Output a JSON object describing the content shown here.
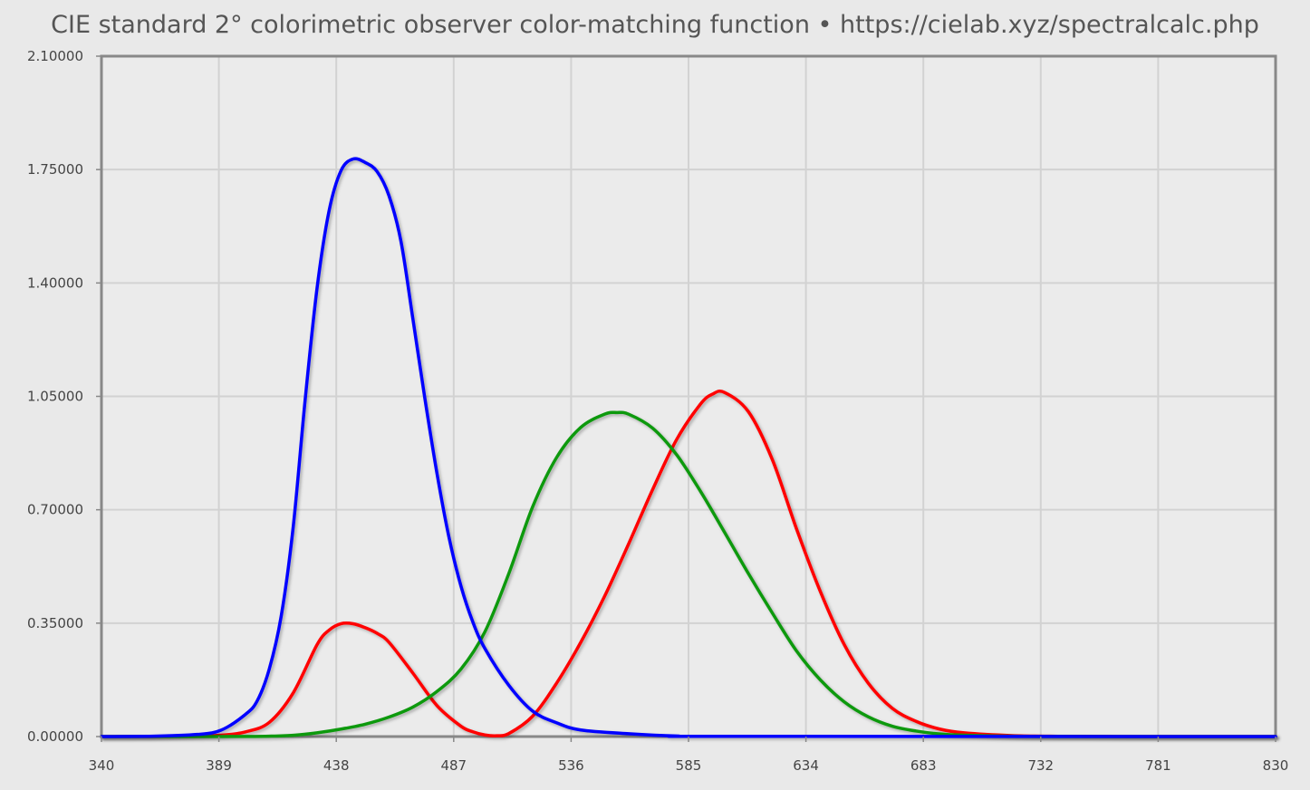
{
  "chart_data": {
    "type": "line",
    "title": "CIE standard 2° colorimetric observer color-matching function • https://cielab.xyz/spectralcalc.php",
    "xlabel": "",
    "ylabel": "",
    "xlim": [
      340,
      830
    ],
    "ylim": [
      0,
      2.1
    ],
    "xticks": [
      340,
      389,
      438,
      487,
      536,
      585,
      634,
      683,
      732,
      781,
      830
    ],
    "yticks": [
      0.0,
      0.35,
      0.7,
      1.05,
      1.4,
      1.75,
      2.1
    ],
    "ytick_labels": [
      "0.00000",
      "0.35000",
      "0.70000",
      "1.05000",
      "1.40000",
      "1.75000",
      "2.10000"
    ],
    "xtick_labels": [
      "340",
      "389",
      "438",
      "487",
      "536",
      "585",
      "634",
      "683",
      "732",
      "781",
      "830"
    ],
    "grid": true,
    "legend": "none",
    "series": [
      {
        "color": "#ff0000",
        "x": [
          340,
          360,
          380,
          390,
          400,
          410,
          420,
          430,
          435,
          440,
          445,
          450,
          455,
          460,
          470,
          480,
          490,
          495,
          500,
          505,
          510,
          520,
          530,
          540,
          550,
          560,
          570,
          580,
          590,
          595,
          600,
          610,
          620,
          630,
          640,
          650,
          660,
          670,
          680,
          690,
          700,
          720,
          740,
          760,
          780,
          830
        ],
        "y": [
          0,
          0.0001,
          0.0014,
          0.0042,
          0.0143,
          0.0435,
          0.1344,
          0.2839,
          0.3285,
          0.3483,
          0.3481,
          0.3362,
          0.3187,
          0.2908,
          0.1954,
          0.0956,
          0.032,
          0.0147,
          0.0049,
          0.0024,
          0.0093,
          0.0633,
          0.1655,
          0.2904,
          0.4334,
          0.5945,
          0.7621,
          0.9163,
          1.0263,
          1.0567,
          1.0622,
          1.0026,
          0.8544,
          0.6424,
          0.4479,
          0.2835,
          0.1649,
          0.0874,
          0.0468,
          0.0227,
          0.0114,
          0.0029,
          0.0007,
          0.0002,
          0,
          0
        ]
      },
      {
        "color": "#119911",
        "x": [
          340,
          360,
          380,
          400,
          410,
          420,
          430,
          440,
          450,
          460,
          470,
          480,
          490,
          500,
          510,
          520,
          530,
          540,
          550,
          555,
          560,
          570,
          580,
          590,
          600,
          610,
          620,
          630,
          640,
          650,
          660,
          670,
          680,
          690,
          700,
          720,
          740,
          760,
          780,
          830
        ],
        "y": [
          0,
          0,
          0.0001,
          0.0004,
          0.0012,
          0.004,
          0.0116,
          0.023,
          0.038,
          0.06,
          0.091,
          0.139,
          0.208,
          0.323,
          0.503,
          0.71,
          0.862,
          0.954,
          0.995,
          1.0,
          0.995,
          0.952,
          0.87,
          0.757,
          0.631,
          0.503,
          0.381,
          0.265,
          0.175,
          0.107,
          0.061,
          0.032,
          0.017,
          0.0082,
          0.0041,
          0.001,
          0.0003,
          0.0001,
          0,
          0
        ]
      },
      {
        "color": "#0000ff",
        "x": [
          340,
          360,
          380,
          390,
          400,
          405,
          410,
          415,
          420,
          425,
          430,
          435,
          440,
          445,
          450,
          455,
          460,
          465,
          470,
          475,
          480,
          485,
          490,
          495,
          500,
          510,
          520,
          530,
          540,
          560,
          580,
          600,
          830
        ],
        "y": [
          0,
          0.0006,
          0.0065,
          0.02,
          0.0679,
          0.1102,
          0.2074,
          0.3713,
          0.6456,
          1.0391,
          1.3856,
          1.623,
          1.7471,
          1.7826,
          1.7721,
          1.7441,
          1.6692,
          1.5281,
          1.2876,
          1.0419,
          0.813,
          0.6162,
          0.4652,
          0.3533,
          0.272,
          0.1582,
          0.0782,
          0.0422,
          0.0203,
          0.0087,
          0.0017,
          0.0008,
          0
        ]
      }
    ]
  }
}
